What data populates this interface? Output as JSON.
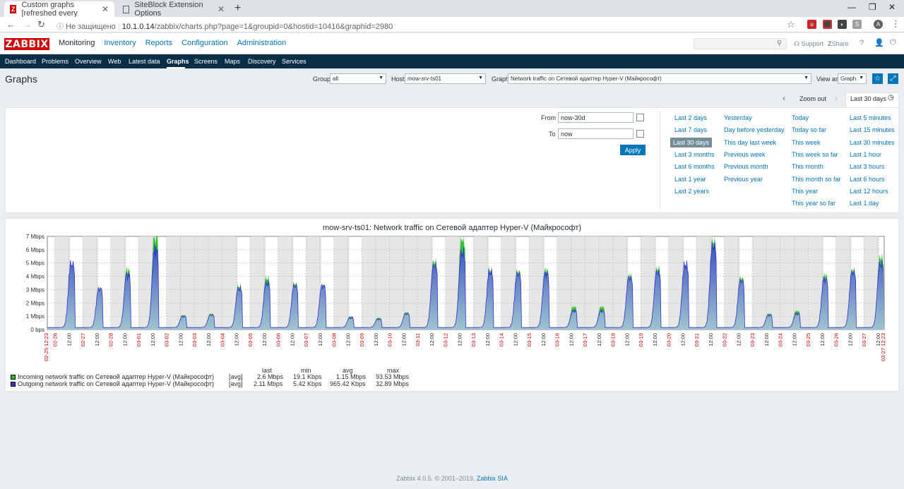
{
  "browser": {
    "tabs": [
      {
        "title": "Custom graphs [refreshed every",
        "active": true
      },
      {
        "title": "SiteBlock Extension Options",
        "active": false
      }
    ],
    "security": "Не защищено",
    "url_host": "10.1.0.14",
    "url_path": "/zabbix/charts.php?page=1&groupid=0&hostid=10416&graphid=2980"
  },
  "header": {
    "logo": "ZABBIX",
    "menu": [
      "Monitoring",
      "Inventory",
      "Reports",
      "Configuration",
      "Administration"
    ],
    "support": "Support",
    "share": "Share",
    "help": "?"
  },
  "submenu": [
    "Dashboard",
    "Problems",
    "Overview",
    "Web",
    "Latest data",
    "Graphs",
    "Screens",
    "Maps",
    "Discovery",
    "Services"
  ],
  "page": {
    "title": "Graphs",
    "group_label": "Group",
    "group_value": "all",
    "host_label": "Host",
    "host_value": "mow-srv-ts01",
    "graph_label": "Graph",
    "graph_value": "Network traffic on Сетевой адаптер Hyper-V (Майкрософт)",
    "viewas_label": "View as",
    "viewas_value": "Graph"
  },
  "timefilter": {
    "zoom_out": "Zoom out",
    "active_tab": "Last 30 days",
    "from_label": "From",
    "from_value": "now-30d",
    "to_label": "To",
    "to_value": "now",
    "apply": "Apply",
    "quick": [
      [
        "Last 2 days",
        "Last 7 days",
        "Last 30 days",
        "Last 3 months",
        "Last 6 months",
        "Last 1 year",
        "Last 2 years"
      ],
      [
        "Yesterday",
        "Day before yesterday",
        "This day last week",
        "Previous week",
        "Previous month",
        "Previous year"
      ],
      [
        "Today",
        "Today so far",
        "This week",
        "This week so far",
        "This month",
        "This month so far",
        "This year",
        "This year so far"
      ],
      [
        "Last 5 minutes",
        "Last 15 minutes",
        "Last 30 minutes",
        "Last 1 hour",
        "Last 3 hours",
        "Last 6 hours",
        "Last 12 hours",
        "Last 1 day"
      ]
    ]
  },
  "chart_data": {
    "type": "area",
    "title": "mow-srv-ts01: Network traffic on Сетевой адаптер Hyper-V (Майкрософт)",
    "y_ticks": [
      "0 bps",
      "1 Mbps",
      "2 Mbps",
      "3 Mbps",
      "4 Mbps",
      "5 Mbps",
      "6 Mbps",
      "7 Mbps"
    ],
    "ylim": [
      0,
      7
    ],
    "x_start_label": "02-25 12:23",
    "x_end_label": "03-27 12:23",
    "days": [
      "02-26",
      "02-27",
      "02-28",
      "03-01",
      "03-02",
      "03-03",
      "03-04",
      "03-05",
      "03-06",
      "03-07",
      "03-08",
      "03-09",
      "03-10",
      "03-11",
      "03-12",
      "03-13",
      "03-14",
      "03-15",
      "03-16",
      "03-17",
      "03-18",
      "03-19",
      "03-20",
      "03-21",
      "03-22",
      "03-23",
      "03-24",
      "03-25",
      "03-26",
      "03-27"
    ],
    "noon_label": "12:00",
    "weekend_days": [
      "03-02",
      "03-03",
      "03-09",
      "03-10",
      "03-16",
      "03-17",
      "03-23",
      "03-24"
    ],
    "daily_peaks_incoming": [
      4.6,
      2.9,
      4.2,
      6.8,
      0.9,
      1.0,
      3.0,
      3.6,
      3.2,
      3.1,
      0.8,
      0.7,
      1.1,
      4.8,
      6.5,
      4.2,
      4.1,
      4.2,
      1.5,
      1.5,
      3.8,
      4.3,
      4.6,
      6.3,
      3.6,
      1.0,
      1.2,
      3.8,
      4.2,
      5.1
    ],
    "daily_peaks_outgoing": [
      4.6,
      2.8,
      3.8,
      5.6,
      0.8,
      0.9,
      2.8,
      3.2,
      3.0,
      3.0,
      0.7,
      0.6,
      1.0,
      4.5,
      5.4,
      4.0,
      3.9,
      3.9,
      1.2,
      1.2,
      3.6,
      4.0,
      4.5,
      5.9,
      3.4,
      0.9,
      1.0,
      3.5,
      4.0,
      4.6
    ],
    "colors": {
      "incoming": "#1ebd1e",
      "outgoing": "#3333cc"
    },
    "legend": {
      "headers": [
        "last",
        "min",
        "avg",
        "max"
      ],
      "rows": [
        {
          "name": "Incoming network traffic on Сетевой адаптер Hyper-V (Майкрософт)",
          "fn": "[avg]",
          "last": "2.6 Mbps",
          "min": "19.1 Kbps",
          "avg": "1.15 Mbps",
          "max": "93.53 Mbps"
        },
        {
          "name": "Outgoing network traffic on Сетевой адаптер Hyper-V (Майкрософт)",
          "fn": "[avg]",
          "last": "2.11 Mbps",
          "min": "5.42 Kbps",
          "avg": "965.42 Kbps",
          "max": "32.89 Mbps"
        }
      ]
    }
  },
  "footer": {
    "text": "Zabbix 4.0.5. © 2001–2019, ",
    "link": "Zabbix SIA"
  }
}
